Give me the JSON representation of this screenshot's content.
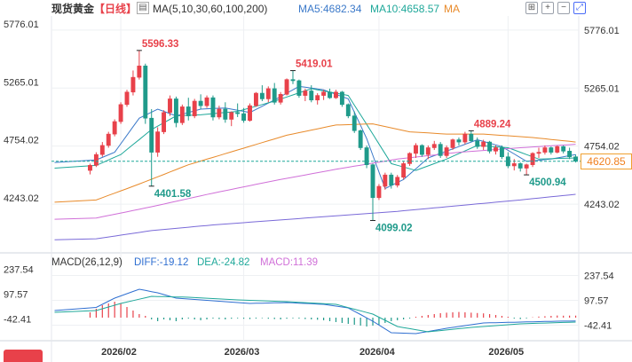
{
  "header": {
    "title": "现货黄金",
    "period": "【日线】",
    "ma_label": "MA(5,10,30,60,100,200)",
    "ma5": "MA5:4682.34",
    "ma10": "MA10:4658.57",
    "ma_extra": "MA"
  },
  "macd_header": {
    "label": "MACD(26,12,9)",
    "diff": "DIFF:-19.12",
    "dea": "DEA:-24.82",
    "macd": "MACD:11.39"
  },
  "colors": {
    "up": "#e8414a",
    "down": "#1f9a8a",
    "ma5": "#3b79c9",
    "ma10": "#1fa89a",
    "ma30": "#e88a2a",
    "ma60": "#d070d8",
    "ma100": "#7a6ad8",
    "diff": "#2f6fd1",
    "dea": "#1fa89a",
    "last_price": "#f08020"
  },
  "chart_data": {
    "type": "candlestick",
    "price_axis_ticks": [
      "5776.01",
      "5265.01",
      "4754.02",
      "4243.02"
    ],
    "macd_axis_ticks": [
      "237.54",
      "97.57",
      "-42.41"
    ],
    "x_ticks": [
      "2026/02",
      "2026/03",
      "2026/04",
      "2026/05"
    ],
    "price_range": [
      3900,
      5900
    ],
    "macd_range": [
      -110,
      300
    ],
    "annotations": {
      "high_1": "5596.33",
      "low_1": "4401.58",
      "high_2": "5419.01",
      "low_2": "4099.02",
      "high_3": "4889.24",
      "low_3": "4500.94"
    },
    "last_price": "4620.85",
    "candles_ohlc": [
      [
        4540,
        4600,
        4505,
        4585
      ],
      [
        4585,
        4700,
        4570,
        4680
      ],
      [
        4680,
        4790,
        4660,
        4760
      ],
      [
        4760,
        4880,
        4740,
        4860
      ],
      [
        4860,
        4990,
        4840,
        4970
      ],
      [
        4970,
        5140,
        4950,
        5120
      ],
      [
        5120,
        5250,
        5100,
        5230
      ],
      [
        5230,
        5420,
        5200,
        5360
      ],
      [
        5360,
        5596.33,
        5340,
        5460
      ],
      [
        5460,
        5480,
        4950,
        5000
      ],
      [
        5000,
        5080,
        4401.58,
        4700
      ],
      [
        4700,
        4920,
        4660,
        4880
      ],
      [
        4880,
        5070,
        4860,
        5050
      ],
      [
        5050,
        5200,
        5020,
        5170
      ],
      [
        5170,
        5190,
        4920,
        4960
      ],
      [
        4960,
        5120,
        4940,
        5100
      ],
      [
        5100,
        5180,
        4980,
        5020
      ],
      [
        5020,
        5170,
        5000,
        5150
      ],
      [
        5150,
        5210,
        5080,
        5110
      ],
      [
        5110,
        5200,
        5090,
        5180
      ],
      [
        5180,
        5200,
        4980,
        5010
      ],
      [
        5010,
        5110,
        4990,
        5080
      ],
      [
        5080,
        5140,
        4960,
        4990
      ],
      [
        4990,
        5060,
        4930,
        5050
      ],
      [
        5050,
        5130,
        5010,
        5040
      ],
      [
        5040,
        5090,
        4960,
        4980
      ],
      [
        4980,
        5130,
        4970,
        5110
      ],
      [
        5110,
        5230,
        5100,
        5220
      ],
      [
        5220,
        5290,
        5150,
        5170
      ],
      [
        5170,
        5280,
        5140,
        5260
      ],
      [
        5260,
        5310,
        5120,
        5140
      ],
      [
        5140,
        5230,
        5120,
        5210
      ],
      [
        5210,
        5350,
        5200,
        5340
      ],
      [
        5340,
        5419.01,
        5300,
        5330
      ],
      [
        5330,
        5340,
        5180,
        5200
      ],
      [
        5200,
        5260,
        5150,
        5240
      ],
      [
        5240,
        5290,
        5140,
        5160
      ],
      [
        5160,
        5220,
        5120,
        5200
      ],
      [
        5200,
        5250,
        5160,
        5230
      ],
      [
        5230,
        5260,
        5170,
        5180
      ],
      [
        5180,
        5250,
        5170,
        5230
      ],
      [
        5230,
        5240,
        5100,
        5120
      ],
      [
        5120,
        5130,
        5000,
        5020
      ],
      [
        5020,
        5060,
        4870,
        4890
      ],
      [
        4890,
        4900,
        4720,
        4740
      ],
      [
        4740,
        4760,
        4560,
        4590
      ],
      [
        4590,
        4600,
        4099.02,
        4300
      ],
      [
        4300,
        4420,
        4280,
        4400
      ],
      [
        4400,
        4520,
        4370,
        4500
      ],
      [
        4500,
        4520,
        4380,
        4410
      ],
      [
        4410,
        4500,
        4390,
        4480
      ],
      [
        4480,
        4620,
        4460,
        4600
      ],
      [
        4600,
        4700,
        4580,
        4690
      ],
      [
        4690,
        4780,
        4650,
        4760
      ],
      [
        4760,
        4770,
        4660,
        4680
      ],
      [
        4680,
        4760,
        4640,
        4740
      ],
      [
        4740,
        4800,
        4720,
        4770
      ],
      [
        4770,
        4790,
        4650,
        4670
      ],
      [
        4670,
        4760,
        4650,
        4740
      ],
      [
        4740,
        4820,
        4720,
        4810
      ],
      [
        4810,
        4830,
        4760,
        4790
      ],
      [
        4790,
        4880,
        4770,
        4860
      ],
      [
        4860,
        4889.24,
        4790,
        4800
      ],
      [
        4800,
        4830,
        4730,
        4750
      ],
      [
        4750,
        4810,
        4720,
        4790
      ],
      [
        4790,
        4800,
        4690,
        4710
      ],
      [
        4710,
        4760,
        4680,
        4740
      ],
      [
        4740,
        4760,
        4640,
        4660
      ],
      [
        4660,
        4700,
        4560,
        4580
      ],
      [
        4580,
        4640,
        4540,
        4600
      ],
      [
        4600,
        4610,
        4530,
        4560
      ],
      [
        4560,
        4600,
        4500.94,
        4590
      ],
      [
        4590,
        4700,
        4570,
        4690
      ],
      [
        4690,
        4740,
        4650,
        4700
      ],
      [
        4700,
        4760,
        4680,
        4740
      ],
      [
        4740,
        4750,
        4680,
        4700
      ],
      [
        4700,
        4760,
        4690,
        4750
      ],
      [
        4750,
        4760,
        4690,
        4710
      ],
      [
        4710,
        4740,
        4640,
        4660
      ],
      [
        4660,
        4680,
        4610,
        4620.85
      ]
    ],
    "ma_lines": [
      {
        "key": "ma5",
        "from": 1,
        "to": 79,
        "points": [
          [
            0,
            4610
          ],
          [
            4,
            4700
          ],
          [
            8,
            5000
          ],
          [
            11,
            5080
          ],
          [
            14,
            5020
          ],
          [
            18,
            5080
          ],
          [
            22,
            5090
          ],
          [
            26,
            5050
          ],
          [
            30,
            5160
          ],
          [
            34,
            5280
          ],
          [
            38,
            5250
          ],
          [
            42,
            5170
          ],
          [
            45,
            4820
          ],
          [
            48,
            4380
          ],
          [
            51,
            4460
          ],
          [
            55,
            4650
          ],
          [
            59,
            4730
          ],
          [
            63,
            4810
          ],
          [
            67,
            4750
          ],
          [
            71,
            4620
          ],
          [
            75,
            4640
          ],
          [
            79,
            4680
          ]
        ]
      },
      {
        "key": "ma10",
        "from": 1,
        "to": 79,
        "points": [
          [
            0,
            4560
          ],
          [
            5,
            4680
          ],
          [
            10,
            4900
          ],
          [
            14,
            5020
          ],
          [
            18,
            5030
          ],
          [
            24,
            5060
          ],
          [
            30,
            5150
          ],
          [
            36,
            5260
          ],
          [
            42,
            5200
          ],
          [
            46,
            4860
          ],
          [
            49,
            4600
          ],
          [
            53,
            4540
          ],
          [
            58,
            4640
          ],
          [
            63,
            4760
          ],
          [
            68,
            4740
          ],
          [
            73,
            4640
          ],
          [
            79,
            4650
          ]
        ]
      },
      {
        "key": "ma30",
        "from": 1,
        "to": 79,
        "points": [
          [
            0,
            4260
          ],
          [
            8,
            4420
          ],
          [
            16,
            4590
          ],
          [
            24,
            4720
          ],
          [
            32,
            4850
          ],
          [
            40,
            4940
          ],
          [
            46,
            4950
          ],
          [
            52,
            4880
          ],
          [
            58,
            4860
          ],
          [
            64,
            4860
          ],
          [
            72,
            4830
          ],
          [
            79,
            4790
          ]
        ]
      },
      {
        "key": "ma60",
        "from": 1,
        "to": 79,
        "points": [
          [
            0,
            4110
          ],
          [
            10,
            4220
          ],
          [
            20,
            4340
          ],
          [
            30,
            4450
          ],
          [
            40,
            4550
          ],
          [
            50,
            4640
          ],
          [
            60,
            4700
          ],
          [
            70,
            4740
          ],
          [
            79,
            4770
          ]
        ]
      },
      {
        "key": "ma100",
        "from": 1,
        "to": 79,
        "points": [
          [
            0,
            3930
          ],
          [
            10,
            4010
          ],
          [
            20,
            4060
          ],
          [
            30,
            4100
          ],
          [
            40,
            4140
          ],
          [
            50,
            4180
          ],
          [
            60,
            4230
          ],
          [
            70,
            4280
          ],
          [
            79,
            4330
          ]
        ]
      }
    ],
    "macd_diff": [
      [
        0,
        40
      ],
      [
        4,
        110
      ],
      [
        8,
        160
      ],
      [
        11,
        140
      ],
      [
        14,
        110
      ],
      [
        20,
        95
      ],
      [
        26,
        80
      ],
      [
        32,
        85
      ],
      [
        38,
        75
      ],
      [
        42,
        55
      ],
      [
        46,
        -20
      ],
      [
        49,
        -85
      ],
      [
        53,
        -90
      ],
      [
        58,
        -60
      ],
      [
        64,
        -30
      ],
      [
        70,
        -25
      ],
      [
        76,
        -20
      ],
      [
        79,
        -19.12
      ]
    ],
    "macd_dea": [
      [
        0,
        30
      ],
      [
        5,
        80
      ],
      [
        10,
        120
      ],
      [
        16,
        115
      ],
      [
        24,
        100
      ],
      [
        32,
        90
      ],
      [
        40,
        75
      ],
      [
        46,
        20
      ],
      [
        50,
        -50
      ],
      [
        55,
        -80
      ],
      [
        62,
        -55
      ],
      [
        70,
        -35
      ],
      [
        79,
        -24.82
      ]
    ],
    "macd_hist": [
      30,
      50,
      70,
      80,
      90,
      80,
      60,
      40,
      20,
      10,
      -10,
      -20,
      -10,
      -15,
      -20,
      -10,
      -5,
      -10,
      -15,
      -10,
      -5,
      -8,
      -10,
      -6,
      -4,
      -6,
      -8,
      -5,
      -3,
      -6,
      -8,
      -10,
      -6,
      -4,
      -5,
      -8,
      -10,
      -12,
      -15,
      -20,
      -25,
      -30,
      -35,
      -40,
      -45,
      -50,
      -45,
      -40,
      -30,
      -20,
      -15,
      -10,
      -5,
      5,
      10,
      15,
      20,
      25,
      28,
      30,
      32,
      30,
      28,
      26,
      24,
      20,
      15,
      10,
      5,
      -5,
      -8,
      -4,
      2,
      6,
      8,
      10,
      12,
      11,
      11.5,
      11.39
    ]
  }
}
